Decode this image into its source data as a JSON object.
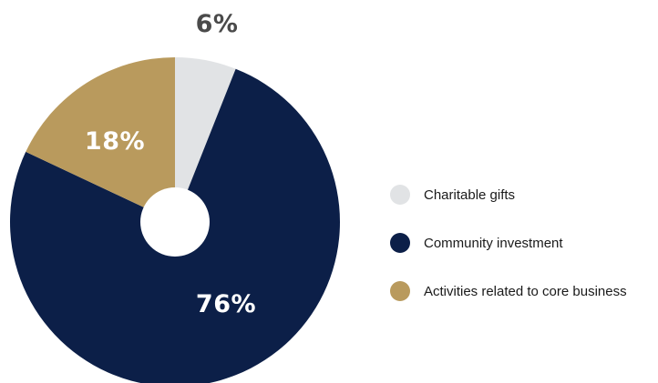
{
  "chart_data": {
    "type": "pie",
    "title": "",
    "donut_hole": true,
    "categories": [
      "Charitable gifts",
      "Community investment",
      "Activities related to core business"
    ],
    "values": [
      6,
      76,
      18
    ],
    "data_labels": [
      "6%",
      "76%",
      "18%"
    ],
    "colors": [
      "#e1e3e5",
      "#0c1f48",
      "#b99a5d"
    ],
    "label_colors": [
      "#4a4a4a",
      "#ffffff",
      "#ffffff"
    ],
    "legend_position": "right"
  }
}
